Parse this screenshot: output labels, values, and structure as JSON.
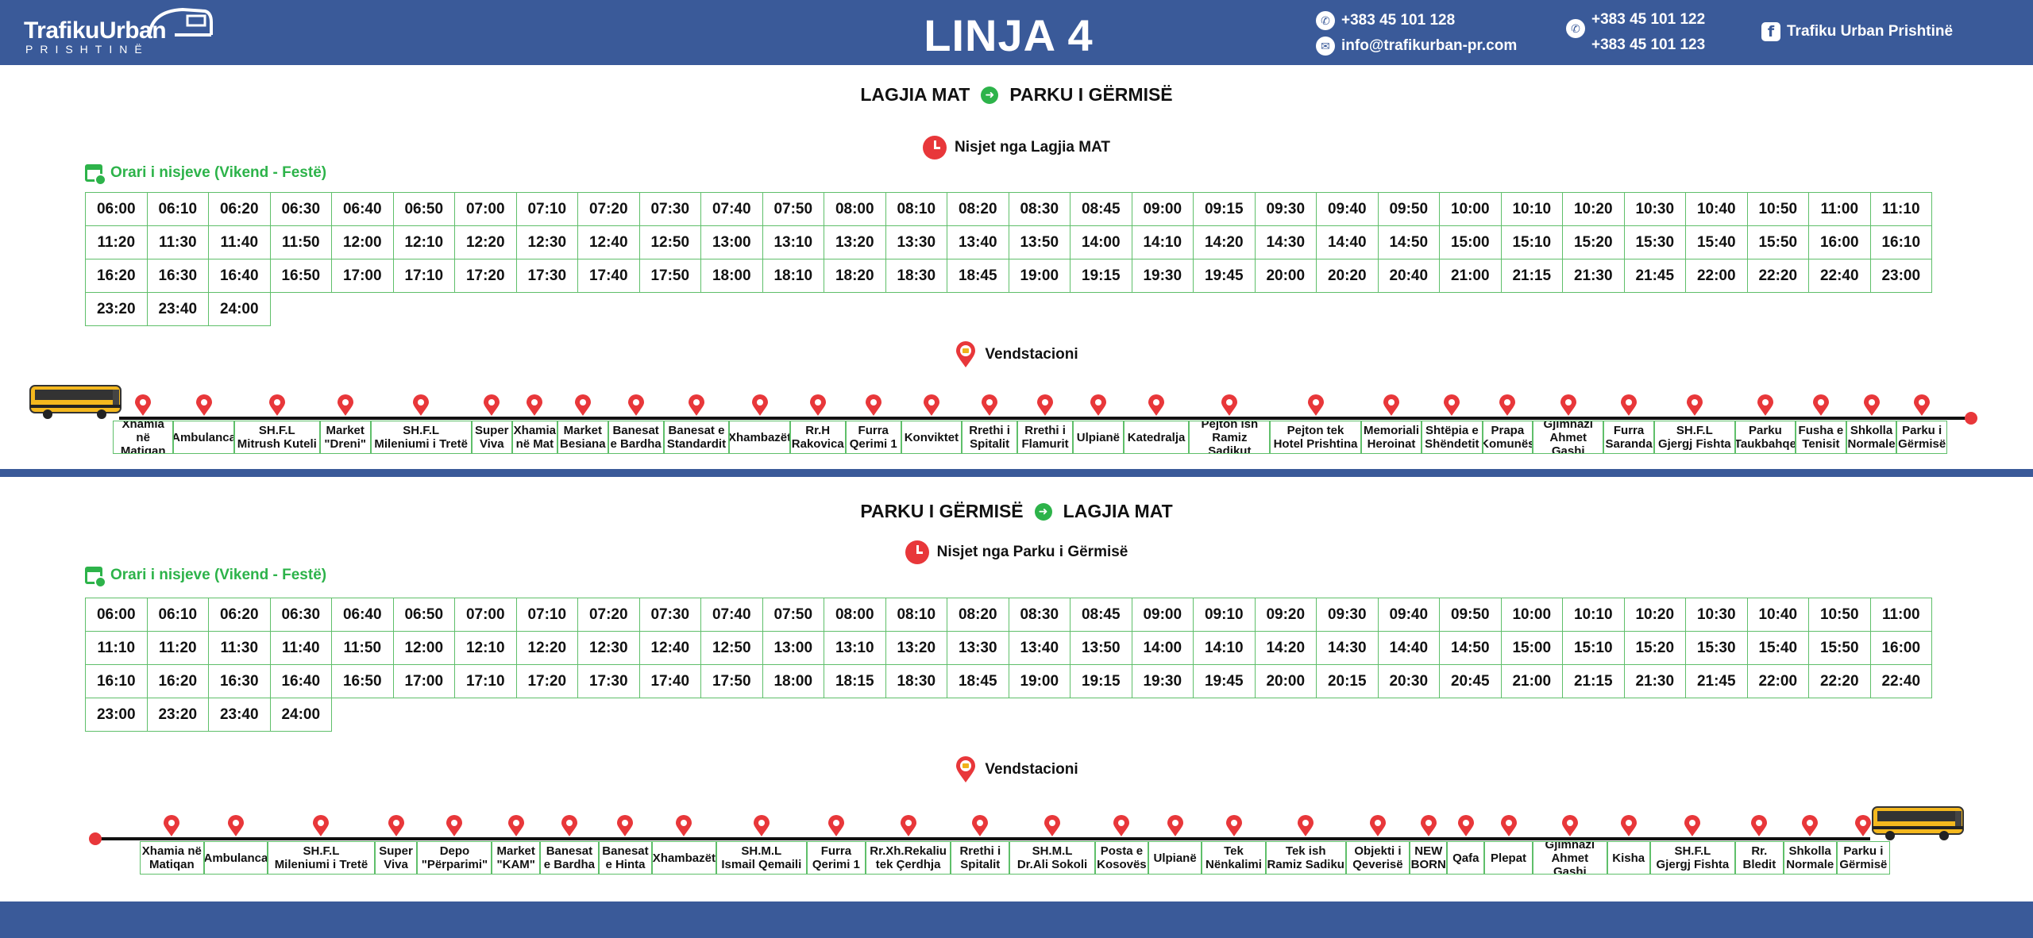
{
  "header": {
    "logo_top": "TrafikuUrban",
    "logo_bottom": "PRISHTINË",
    "title": "LINJA 4",
    "phone1": "+383 45 101 128",
    "email": "info@trafikurban-pr.com",
    "viber1": "+383 45 101 122",
    "viber2": "+383 45 101 123",
    "facebook": "Trafiku Urban Prishtinë",
    "icons": [
      "phone-icon",
      "email-icon",
      "viber-icon",
      "facebook-icon"
    ]
  },
  "colors": {
    "header_bg": "#3a5a99",
    "accent_green": "#2db34a",
    "accent_red": "#e8373a",
    "grid_border": "#5fbf6a"
  },
  "sections": [
    {
      "route_from": "LAGJIA MAT",
      "route_to": "PARKU I GËRMISË",
      "departures_title": "Nisjet nga Lagjia MAT",
      "schedule_label": "Orari i nisjeve (Vikend - Festë)",
      "stops_title": "Vendstacioni",
      "times": [
        [
          "06:00",
          "06:10",
          "06:20",
          "06:30",
          "06:40",
          "06:50",
          "07:00",
          "07:10",
          "07:20",
          "07:30",
          "07:40",
          "07:50",
          "08:00",
          "08:10",
          "08:20",
          "08:30",
          "08:45",
          "09:00",
          "09:15",
          "09:30",
          "09:40",
          "09:50",
          "10:00",
          "10:10",
          "10:20",
          "10:30",
          "10:40",
          "10:50",
          "11:00",
          "11:10"
        ],
        [
          "11:20",
          "11:30",
          "11:40",
          "11:50",
          "12:00",
          "12:10",
          "12:20",
          "12:30",
          "12:40",
          "12:50",
          "13:00",
          "13:10",
          "13:20",
          "13:30",
          "13:40",
          "13:50",
          "14:00",
          "14:10",
          "14:20",
          "14:30",
          "14:40",
          "14:50",
          "15:00",
          "15:10",
          "15:20",
          "15:30",
          "15:40",
          "15:50",
          "16:00",
          "16:10"
        ],
        [
          "16:20",
          "16:30",
          "16:40",
          "16:50",
          "17:00",
          "17:10",
          "17:20",
          "17:30",
          "17:40",
          "17:50",
          "18:00",
          "18:10",
          "18:20",
          "18:30",
          "18:45",
          "19:00",
          "19:15",
          "19:30",
          "19:45",
          "20:00",
          "20:20",
          "20:40",
          "21:00",
          "21:15",
          "21:30",
          "21:45",
          "22:00",
          "22:20",
          "22:40",
          "23:00"
        ],
        [
          "23:20",
          "23:40",
          "24:00"
        ]
      ],
      "stops": [
        [
          "Xhamia në",
          "Matiqan"
        ],
        [
          "Ambulanca"
        ],
        [
          "SH.F.L",
          "Mitrush Kuteli"
        ],
        [
          "Market",
          "\"Dreni\""
        ],
        [
          "SH.F.L",
          "Mileniumi i Tretë"
        ],
        [
          "Super",
          "Viva"
        ],
        [
          "Xhamia",
          "në Mat"
        ],
        [
          "Market",
          "Besiana"
        ],
        [
          "Banesat",
          "e Bardha"
        ],
        [
          "Banesat e",
          "Standardit"
        ],
        [
          "Xhambazët"
        ],
        [
          "Rr.H",
          "Rakovica"
        ],
        [
          "Furra",
          "Qerimi 1"
        ],
        [
          "Konviktet"
        ],
        [
          "Rrethi i",
          "Spitalit"
        ],
        [
          "Rrethi i",
          "Flamurit"
        ],
        [
          "Ulpianë"
        ],
        [
          "Katedralja"
        ],
        [
          "Pejton ish",
          "Ramiz Sadikut"
        ],
        [
          "Pejton tek",
          "Hotel Prishtina"
        ],
        [
          "Memoriali",
          "Heroinat"
        ],
        [
          "Shtëpia e",
          "Shëndetit"
        ],
        [
          "Prapa",
          "Komunës"
        ],
        [
          "Gjimnazi",
          "Ahmet Gashi"
        ],
        [
          "Furra",
          "Saranda"
        ],
        [
          "SH.F.L",
          "Gjergj Fishta"
        ],
        [
          "Parku",
          "Taukbahqe"
        ],
        [
          "Fusha e",
          "Tenisit"
        ],
        [
          "Shkolla",
          "Normale"
        ],
        [
          "Parku i",
          "Gërmisë"
        ]
      ]
    },
    {
      "route_from": "PARKU I GËRMISË",
      "route_to": "LAGJIA MAT",
      "departures_title": "Nisjet nga Parku i Gërmisë",
      "schedule_label": "Orari i nisjeve (Vikend - Festë)",
      "stops_title": "Vendstacioni",
      "times": [
        [
          "06:00",
          "06:10",
          "06:20",
          "06:30",
          "06:40",
          "06:50",
          "07:00",
          "07:10",
          "07:20",
          "07:30",
          "07:40",
          "07:50",
          "08:00",
          "08:10",
          "08:20",
          "08:30",
          "08:45",
          "09:00",
          "09:10",
          "09:20",
          "09:30",
          "09:40",
          "09:50",
          "10:00",
          "10:10",
          "10:20",
          "10:30",
          "10:40",
          "10:50",
          "11:00"
        ],
        [
          "11:10",
          "11:20",
          "11:30",
          "11:40",
          "11:50",
          "12:00",
          "12:10",
          "12:20",
          "12:30",
          "12:40",
          "12:50",
          "13:00",
          "13:10",
          "13:20",
          "13:30",
          "13:40",
          "13:50",
          "14:00",
          "14:10",
          "14:20",
          "14:30",
          "14:40",
          "14:50",
          "15:00",
          "15:10",
          "15:20",
          "15:30",
          "15:40",
          "15:50",
          "16:00"
        ],
        [
          "16:10",
          "16:20",
          "16:30",
          "16:40",
          "16:50",
          "17:00",
          "17:10",
          "17:20",
          "17:30",
          "17:40",
          "17:50",
          "18:00",
          "18:15",
          "18:30",
          "18:45",
          "19:00",
          "19:15",
          "19:30",
          "19:45",
          "20:00",
          "20:15",
          "20:30",
          "20:45",
          "21:00",
          "21:15",
          "21:30",
          "21:45",
          "22:00",
          "22:20",
          "22:40"
        ],
        [
          "23:00",
          "23:20",
          "23:40",
          "24:00"
        ]
      ],
      "stops": [
        [
          "Xhamia në",
          "Matiqan"
        ],
        [
          "Ambulanca"
        ],
        [
          "SH.F.L",
          "Mileniumi i Tretë"
        ],
        [
          "Super",
          "Viva"
        ],
        [
          "Depo",
          "\"Përparimi\""
        ],
        [
          "Market",
          "\"KAM\""
        ],
        [
          "Banesat",
          "e Bardha"
        ],
        [
          "Banesat",
          "e Hinta"
        ],
        [
          "Xhambazët"
        ],
        [
          "SH.M.L",
          "Ismail Qemaili"
        ],
        [
          "Furra",
          "Qerimi 1"
        ],
        [
          "Rr.Xh.Rekaliu",
          "tek Çerdhja"
        ],
        [
          "Rrethi i",
          "Spitalit"
        ],
        [
          "SH.M.L",
          "Dr.Ali Sokoli"
        ],
        [
          "Posta e",
          "Kosovës"
        ],
        [
          "Ulpianë"
        ],
        [
          "Tek",
          "Nënkalimi"
        ],
        [
          "Tek ish",
          "Ramiz Sadiku"
        ],
        [
          "Objekti i",
          "Qeverisë"
        ],
        [
          "NEW",
          "BORN"
        ],
        [
          "Qafa"
        ],
        [
          "Plepat"
        ],
        [
          "Gjimnazi",
          "Ahmet Gashi"
        ],
        [
          "Kisha"
        ],
        [
          "SH.F.L",
          "Gjergj Fishta"
        ],
        [
          "Rr.",
          "Bledit"
        ],
        [
          "Shkolla",
          "Normale"
        ],
        [
          "Parku i",
          "Gërmisë"
        ]
      ]
    }
  ]
}
